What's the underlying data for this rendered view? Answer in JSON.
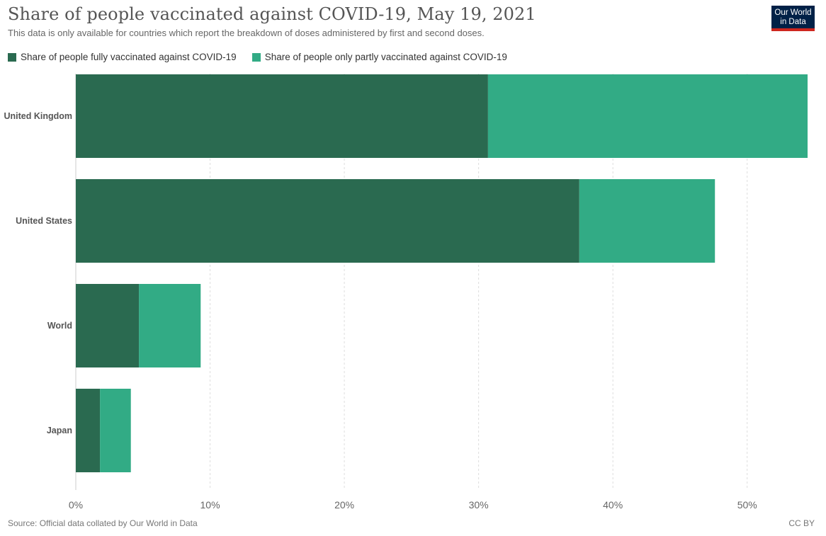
{
  "header": {
    "title": "Share of people vaccinated against COVID-19, May 19, 2021",
    "subtitle": "This data is only available for countries which report the breakdown of doses administered by first and second doses.",
    "logo_line1": "Our World",
    "logo_line2": "in Data"
  },
  "footer": {
    "source": "Source: Official data collated by Our World in Data",
    "license": "CC BY"
  },
  "colors": {
    "fully": "#2a6a50",
    "partly": "#32ab85",
    "grid": "#dddddd",
    "axis": "#cccccc"
  },
  "chart_data": {
    "type": "bar",
    "orientation": "horizontal",
    "stacked": true,
    "categories": [
      "United Kingdom",
      "United States",
      "World",
      "Japan"
    ],
    "series": [
      {
        "name": "Share of people fully vaccinated against COVID-19",
        "values": [
          30.7,
          37.5,
          4.7,
          1.8
        ]
      },
      {
        "name": "Share of people only partly vaccinated against COVID-19",
        "values": [
          23.8,
          10.1,
          4.6,
          2.3
        ]
      }
    ],
    "xlim": [
      0,
      54.5
    ],
    "xticks": [
      0,
      10,
      20,
      30,
      40,
      50
    ],
    "xtick_labels": [
      "0%",
      "10%",
      "20%",
      "30%",
      "40%",
      "50%"
    ],
    "grid": true,
    "legend_position": "top-left"
  }
}
